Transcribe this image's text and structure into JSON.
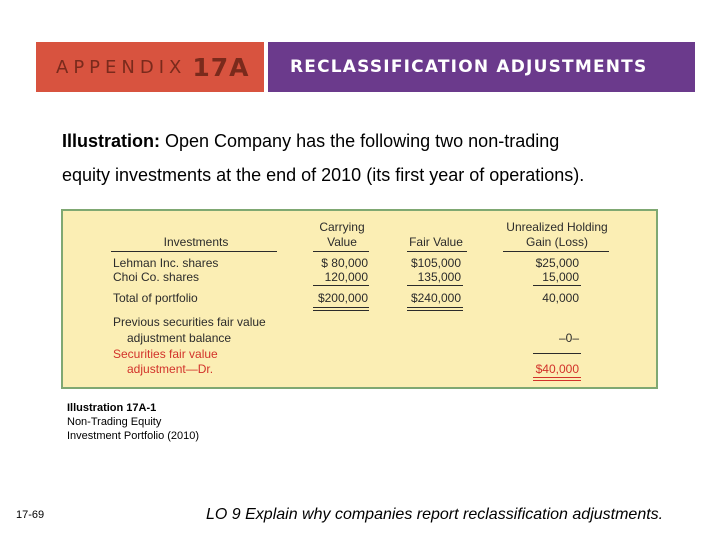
{
  "banner": {
    "appendix_word": "APPENDIX",
    "appendix_number": "17A",
    "title": "RECLASSIFICATION ADJUSTMENTS",
    "colors": {
      "left": "#d8533f",
      "right": "#6b3a8c"
    }
  },
  "intro": {
    "lead": "Illustration:",
    "line1": " Open Company has the following two non-trading",
    "line2": "equity investments at the end of 2010 (its first year of operations)."
  },
  "table": {
    "headers": {
      "investments": "Investments",
      "carrying_1": "Carrying",
      "carrying_2": "Value",
      "fair_value": "Fair Value",
      "gain_1": "Unrealized Holding",
      "gain_2": "Gain (Loss)"
    },
    "rows": [
      {
        "label": "Lehman Inc. shares",
        "carrying": "$  80,000",
        "fair": "$105,000",
        "gain": "$25,000"
      },
      {
        "label": "Choi Co. shares",
        "carrying": "120,000",
        "fair": "135,000",
        "gain": "15,000"
      }
    ],
    "total": {
      "label": "Total of portfolio",
      "carrying": "$200,000",
      "fair": "$240,000",
      "gain": "40,000"
    },
    "previous": {
      "line1": "Previous securities fair value",
      "line2": "adjustment balance",
      "gain": "–0–"
    },
    "adjustment": {
      "line1": "Securities fair value",
      "line2": "adjustment—Dr.",
      "gain": "$40,000"
    },
    "colors": {
      "background": "#fbeeb4",
      "border": "#7fa872",
      "highlight": "#d2322a"
    }
  },
  "caption": {
    "title": "Illustration 17A-1",
    "line1": "Non-Trading Equity",
    "line2": "Investment Portfolio (2010)"
  },
  "footer": {
    "slide_number": "17-69",
    "learning_objective": "LO 9  Explain why companies report reclassification adjustments."
  }
}
